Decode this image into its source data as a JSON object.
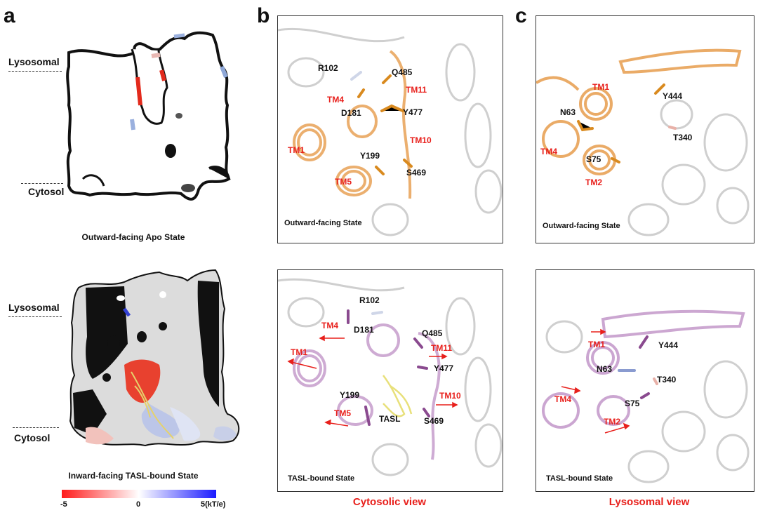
{
  "panel_letters": {
    "a": "a",
    "b": "b",
    "c": "c"
  },
  "panel_a": {
    "top": {
      "lysosomal": "Lysosomal",
      "cytosol": "Cytosol",
      "caption": "Outward-facing Apo State"
    },
    "bottom": {
      "lysosomal": "Lysosomal",
      "cytosol": "Cytosol",
      "caption": "Inward-facing TASL-bound State"
    },
    "colorbar": {
      "min": "-5",
      "mid": "0",
      "max": "5(kT/e)",
      "colors": {
        "negative": "#ff1a1a",
        "neutral": "#ffffff",
        "positive": "#1a1aff"
      }
    }
  },
  "panel_b": {
    "view_label": "Cytosolic view",
    "top": {
      "state": "Outward-facing State",
      "residues": [
        "R102",
        "Q485",
        "D181",
        "Y477",
        "Y199",
        "S469"
      ],
      "helices": [
        "TM11",
        "TM4",
        "TM10",
        "TM1",
        "TM5"
      ]
    },
    "bottom": {
      "state": "TASL-bound State",
      "residues": [
        "R102",
        "D181",
        "Q485",
        "Y477",
        "Y199",
        "S469"
      ],
      "helices": [
        "TM4",
        "TM11",
        "TM1",
        "TM10",
        "TM5"
      ],
      "ligand": "TASL"
    }
  },
  "panel_c": {
    "view_label": "Lysosomal view",
    "top": {
      "state": "Outward-facing State",
      "residues": [
        "Y444",
        "N63",
        "T340",
        "S75"
      ],
      "helices": [
        "TM1",
        "TM4",
        "TM2"
      ]
    },
    "bottom": {
      "state": "TASL-bound State",
      "residues": [
        "Y444",
        "N63",
        "T340",
        "S75"
      ],
      "helices": [
        "TM1",
        "TM4",
        "TM2"
      ]
    }
  },
  "colors": {
    "accent_red": "#e8201c",
    "apo_orange": "#e8a257",
    "bound_purple": "#c9a2cf"
  }
}
